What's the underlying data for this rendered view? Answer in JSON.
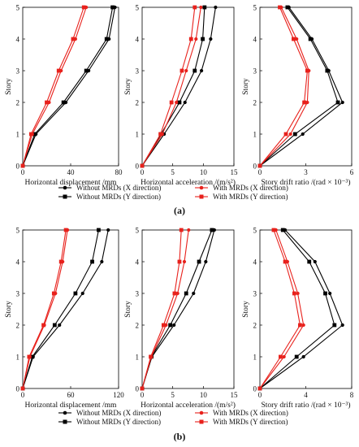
{
  "figure": {
    "panels": [
      {
        "label": "(a)"
      },
      {
        "label": "(b)"
      }
    ]
  },
  "legend": {
    "entries": [
      {
        "text": "Without MRDs (X direction)",
        "color": "#000000",
        "marker": "circle"
      },
      {
        "text": "With MRDs (X direction)",
        "color": "#e8211c",
        "marker": "circle"
      },
      {
        "text": "Without MRDs (Y direction)",
        "color": "#000000",
        "marker": "square"
      },
      {
        "text": "With MRDs (Y direction)",
        "color": "#e8211c",
        "marker": "square"
      }
    ]
  },
  "colors": {
    "without": "#000000",
    "with": "#e8211c"
  },
  "chart_data": [
    {
      "type": "line",
      "panel": "(a)",
      "xlabel": "Horizontal displacement /mm",
      "ylabel": "Story",
      "xlim": [
        0,
        80
      ],
      "ylim": [
        0,
        5
      ],
      "xticks": [
        0,
        40,
        80
      ],
      "yticks": [
        0,
        1,
        2,
        3,
        4,
        5
      ],
      "series": [
        {
          "name": "Without MRDs (X direction)",
          "x": [
            0,
            11,
            36,
            55,
            72,
            77
          ],
          "y": [
            0,
            1,
            2,
            3,
            4,
            5
          ]
        },
        {
          "name": "Without MRDs (Y direction)",
          "x": [
            0,
            10,
            34,
            53,
            70,
            75
          ],
          "y": [
            0,
            1,
            2,
            3,
            4,
            5
          ]
        },
        {
          "name": "With MRDs (X direction)",
          "x": [
            0,
            8,
            22,
            32,
            44,
            53
          ],
          "y": [
            0,
            1,
            2,
            3,
            4,
            5
          ]
        },
        {
          "name": "With MRDs (Y direction)",
          "x": [
            0,
            7,
            20,
            30,
            42,
            51
          ],
          "y": [
            0,
            1,
            2,
            3,
            4,
            5
          ]
        }
      ]
    },
    {
      "type": "line",
      "panel": "(a)",
      "xlabel": "Horizontal acceleration /(m/s²)",
      "ylabel": "Story",
      "xlim": [
        0,
        15
      ],
      "ylim": [
        0,
        5
      ],
      "xticks": [
        0,
        5,
        10,
        15
      ],
      "yticks": [
        0,
        1,
        2,
        3,
        4,
        5
      ],
      "series": [
        {
          "name": "Without MRDs (X direction)",
          "x": [
            0,
            3.6,
            7.0,
            9.7,
            11.2,
            12.0
          ],
          "y": [
            0,
            1,
            2,
            3,
            4,
            5
          ]
        },
        {
          "name": "Without MRDs (Y direction)",
          "x": [
            0,
            3.1,
            6.1,
            8.6,
            9.9,
            10.2
          ],
          "y": [
            0,
            1,
            2,
            3,
            4,
            5
          ]
        },
        {
          "name": "With MRDs (X direction)",
          "x": [
            0,
            3.3,
            5.6,
            7.2,
            8.8,
            9.6
          ],
          "y": [
            0,
            1,
            2,
            3,
            4,
            5
          ]
        },
        {
          "name": "With MRDs (Y direction)",
          "x": [
            0,
            3.0,
            4.8,
            6.5,
            8.0,
            8.6
          ],
          "y": [
            0,
            1,
            2,
            3,
            4,
            5
          ]
        }
      ]
    },
    {
      "type": "line",
      "panel": "(a)",
      "xlabel": "Story drift ratio /(rad × 10⁻³)",
      "ylabel": "Story",
      "xlim": [
        0,
        6
      ],
      "ylim": [
        0,
        5
      ],
      "xticks": [
        0,
        3,
        6
      ],
      "yticks": [
        0,
        1,
        2,
        3,
        4,
        5
      ],
      "series": [
        {
          "name": "Without MRDs (X direction)",
          "x": [
            0,
            2.8,
            5.4,
            4.5,
            3.4,
            1.9
          ],
          "y": [
            0,
            1,
            2,
            3,
            4,
            5
          ]
        },
        {
          "name": "Without MRDs (Y direction)",
          "x": [
            0,
            2.3,
            5.1,
            4.4,
            3.3,
            1.8
          ],
          "y": [
            0,
            1,
            2,
            3,
            4,
            5
          ]
        },
        {
          "name": "With MRDs (X direction)",
          "x": [
            0,
            2.0,
            3.1,
            3.2,
            2.4,
            1.4
          ],
          "y": [
            0,
            1,
            2,
            3,
            4,
            5
          ]
        },
        {
          "name": "With MRDs (Y direction)",
          "x": [
            0,
            1.7,
            2.9,
            3.1,
            2.2,
            1.3
          ],
          "y": [
            0,
            1,
            2,
            3,
            4,
            5
          ]
        }
      ]
    },
    {
      "type": "line",
      "panel": "(b)",
      "xlabel": "Horizontal displacement /mm",
      "ylabel": "Story",
      "xlim": [
        0,
        120
      ],
      "ylim": [
        0,
        5
      ],
      "xticks": [
        0,
        60,
        120
      ],
      "yticks": [
        0,
        1,
        2,
        3,
        4,
        5
      ],
      "series": [
        {
          "name": "Without MRDs (X direction)",
          "x": [
            0,
            13,
            46,
            75,
            99,
            107
          ],
          "y": [
            0,
            1,
            2,
            3,
            4,
            5
          ]
        },
        {
          "name": "Without MRDs (Y direction)",
          "x": [
            0,
            12,
            40,
            66,
            87,
            95
          ],
          "y": [
            0,
            1,
            2,
            3,
            4,
            5
          ]
        },
        {
          "name": "With MRDs (X direction)",
          "x": [
            0,
            9,
            27,
            41,
            50,
            56
          ],
          "y": [
            0,
            1,
            2,
            3,
            4,
            5
          ]
        },
        {
          "name": "With MRDs (Y direction)",
          "x": [
            0,
            8,
            26,
            39,
            48,
            54
          ],
          "y": [
            0,
            1,
            2,
            3,
            4,
            5
          ]
        }
      ]
    },
    {
      "type": "line",
      "panel": "(b)",
      "xlabel": "Horizontal acceleration /(m/s²)",
      "ylabel": "Story",
      "xlim": [
        0,
        15
      ],
      "ylim": [
        0,
        5
      ],
      "xticks": [
        0,
        5,
        10,
        15
      ],
      "yticks": [
        0,
        1,
        2,
        3,
        4,
        5
      ],
      "series": [
        {
          "name": "Without MRDs (X direction)",
          "x": [
            0,
            1.6,
            5.2,
            8.4,
            10.4,
            11.8
          ],
          "y": [
            0,
            1,
            2,
            3,
            4,
            5
          ]
        },
        {
          "name": "Without MRDs (Y direction)",
          "x": [
            0,
            1.5,
            4.6,
            7.2,
            9.3,
            11.4
          ],
          "y": [
            0,
            1,
            2,
            3,
            4,
            5
          ]
        },
        {
          "name": "With MRDs (X direction)",
          "x": [
            0,
            1.5,
            3.9,
            5.8,
            6.9,
            7.6
          ],
          "y": [
            0,
            1,
            2,
            3,
            4,
            5
          ]
        },
        {
          "name": "With MRDs (Y direction)",
          "x": [
            0,
            1.4,
            3.5,
            5.3,
            6.1,
            6.4
          ],
          "y": [
            0,
            1,
            2,
            3,
            4,
            5
          ]
        }
      ]
    },
    {
      "type": "line",
      "panel": "(b)",
      "xlabel": "Story drift ratio /(rad × 10⁻³)",
      "ylabel": "Story",
      "xlim": [
        0,
        8
      ],
      "ylim": [
        0,
        5
      ],
      "xticks": [
        0,
        4,
        8
      ],
      "yticks": [
        0,
        1,
        2,
        3,
        4,
        5
      ],
      "series": [
        {
          "name": "Without MRDs (X direction)",
          "x": [
            0,
            3.8,
            7.2,
            6.1,
            4.8,
            2.2
          ],
          "y": [
            0,
            1,
            2,
            3,
            4,
            5
          ]
        },
        {
          "name": "Without MRDs (Y direction)",
          "x": [
            0,
            3.2,
            6.5,
            5.7,
            4.3,
            2.0
          ],
          "y": [
            0,
            1,
            2,
            3,
            4,
            5
          ]
        },
        {
          "name": "With MRDs (X direction)",
          "x": [
            0,
            2.1,
            3.8,
            3.3,
            2.4,
            1.4
          ],
          "y": [
            0,
            1,
            2,
            3,
            4,
            5
          ]
        },
        {
          "name": "With MRDs (Y direction)",
          "x": [
            0,
            1.8,
            3.5,
            3.0,
            2.2,
            1.2
          ],
          "y": [
            0,
            1,
            2,
            3,
            4,
            5
          ]
        }
      ]
    }
  ]
}
